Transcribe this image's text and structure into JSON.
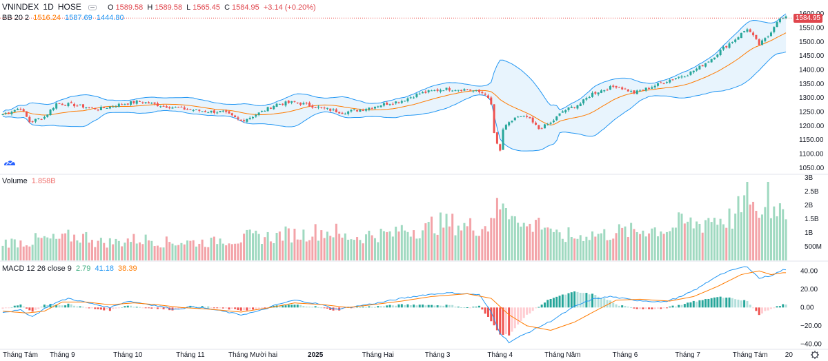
{
  "header": {
    "symbol": "VNINDEX",
    "interval": "1D",
    "exchange": "HOSE",
    "open_label": "O",
    "open": "1589.58",
    "high_label": "H",
    "high": "1589.58",
    "low_label": "L",
    "low": "1565.45",
    "close_label": "C",
    "close": "1584.95",
    "change": "+3.14 (+0.20%)"
  },
  "bb_legend": {
    "name": "BB 20 2",
    "mid": "1516.24",
    "upper": "1587.69",
    "lower": "1444.80"
  },
  "volume_legend": {
    "name": "Volume",
    "value": "1.858B"
  },
  "macd_legend": {
    "name": "MACD 12 26 close 9",
    "hist": "2.79",
    "macd": "41.18",
    "signal": "38.39"
  },
  "price_label": "1584.95",
  "colors": {
    "up": "#26a69a",
    "down": "#ef5350",
    "bb_band": "#2196f3",
    "bb_mid": "#ff7b00",
    "bb_fill": "#e8f4fd"
  },
  "chart_data": {
    "type": "candlestick",
    "title": "VNINDEX 1D HOSE",
    "price_axis": {
      "range": [
        1030,
        1615
      ],
      "ticks": [
        "1600.00",
        "1550.00",
        "1500.00",
        "1450.00",
        "1400.00",
        "1350.00",
        "1300.00",
        "1250.00",
        "1200.00",
        "1150.00",
        "1100.00",
        "1050.00"
      ]
    },
    "volume_axis": {
      "range": [
        0,
        3000
      ],
      "ticks": [
        "3B",
        "2.5B",
        "2B",
        "1.5B",
        "1B",
        "500M"
      ]
    },
    "macd_axis": {
      "range": [
        -45,
        50
      ],
      "ticks": [
        "40.00",
        "20.00",
        "0.00",
        "−20.00",
        "−40.00"
      ]
    },
    "x_axis_labels": [
      "Tháng Tám",
      "Tháng 9",
      "Tháng 10",
      "Tháng 11",
      "Tháng Mười hai",
      "2025",
      "Tháng Hai",
      "Tháng 3",
      "Tháng 4",
      "Tháng Năm",
      "Tháng 6",
      "Tháng 7",
      "Tháng Tám",
      "20"
    ],
    "x_axis_label_index": [
      0,
      20,
      42,
      63,
      84,
      105,
      126,
      146,
      167,
      188,
      209,
      230,
      251,
      264
    ],
    "price_path_anchors": [
      [
        0,
        1242
      ],
      [
        6,
        1265
      ],
      [
        9,
        1215
      ],
      [
        14,
        1232
      ],
      [
        18,
        1280
      ],
      [
        24,
        1275
      ],
      [
        32,
        1260
      ],
      [
        40,
        1278
      ],
      [
        46,
        1288
      ],
      [
        52,
        1275
      ],
      [
        60,
        1262
      ],
      [
        68,
        1252
      ],
      [
        74,
        1250
      ],
      [
        80,
        1218
      ],
      [
        84,
        1235
      ],
      [
        92,
        1278
      ],
      [
        98,
        1285
      ],
      [
        108,
        1262
      ],
      [
        114,
        1248
      ],
      [
        120,
        1258
      ],
      [
        128,
        1278
      ],
      [
        134,
        1290
      ],
      [
        140,
        1316
      ],
      [
        148,
        1332
      ],
      [
        156,
        1330
      ],
      [
        162,
        1316
      ],
      [
        164,
        1275
      ],
      [
        165,
        1175
      ],
      [
        166,
        1132
      ],
      [
        167,
        1110
      ],
      [
        168,
        1188
      ],
      [
        172,
        1230
      ],
      [
        176,
        1232
      ],
      [
        180,
        1190
      ],
      [
        184,
        1210
      ],
      [
        188,
        1252
      ],
      [
        194,
        1280
      ],
      [
        198,
        1316
      ],
      [
        202,
        1330
      ],
      [
        206,
        1343
      ],
      [
        212,
        1318
      ],
      [
        218,
        1340
      ],
      [
        224,
        1365
      ],
      [
        230,
        1385
      ],
      [
        234,
        1410
      ],
      [
        238,
        1440
      ],
      [
        242,
        1478
      ],
      [
        246,
        1510
      ],
      [
        250,
        1548
      ],
      [
        254,
        1490
      ],
      [
        257,
        1520
      ],
      [
        260,
        1575
      ],
      [
        262,
        1585
      ]
    ],
    "volume_baseline_B": [
      0.7,
      0.8,
      0.9,
      0.7,
      0.8,
      0.7,
      0.7,
      0.8,
      0.9,
      1.0,
      1.1,
      0.9,
      1.0,
      1.2,
      1.4,
      1.3,
      1.9,
      1.3,
      0.9,
      1.0,
      1.1,
      1.2,
      1.4,
      1.6,
      1.9,
      2.0
    ],
    "volume_spikes": [
      [
        167,
        1.85
      ],
      [
        169,
        1.9
      ],
      [
        172,
        1.6
      ],
      [
        180,
        1.55
      ],
      [
        190,
        1.2
      ],
      [
        246,
        1.7
      ],
      [
        250,
        2.85
      ],
      [
        253,
        1.8
      ],
      [
        257,
        2.85
      ],
      [
        260,
        1.6
      ],
      [
        262,
        1.858
      ]
    ],
    "macd_anchors": [
      [
        0,
        -5
      ],
      [
        6,
        -3
      ],
      [
        10,
        -10
      ],
      [
        16,
        3
      ],
      [
        22,
        10
      ],
      [
        30,
        4
      ],
      [
        36,
        0
      ],
      [
        42,
        7
      ],
      [
        50,
        3
      ],
      [
        58,
        -2
      ],
      [
        64,
        1
      ],
      [
        72,
        -3
      ],
      [
        80,
        -8
      ],
      [
        86,
        -4
      ],
      [
        92,
        3
      ],
      [
        98,
        8
      ],
      [
        106,
        4
      ],
      [
        112,
        -2
      ],
      [
        118,
        1
      ],
      [
        126,
        5
      ],
      [
        134,
        10
      ],
      [
        142,
        14
      ],
      [
        150,
        16
      ],
      [
        160,
        14
      ],
      [
        164,
        -5
      ],
      [
        167,
        -28
      ],
      [
        170,
        -38
      ],
      [
        176,
        -28
      ],
      [
        184,
        -15
      ],
      [
        192,
        1
      ],
      [
        198,
        9
      ],
      [
        204,
        12
      ],
      [
        212,
        8
      ],
      [
        222,
        6
      ],
      [
        228,
        12
      ],
      [
        234,
        22
      ],
      [
        240,
        35
      ],
      [
        246,
        42
      ],
      [
        250,
        45
      ],
      [
        254,
        32
      ],
      [
        258,
        35
      ],
      [
        262,
        41
      ]
    ],
    "signal_anchors": [
      [
        0,
        -4
      ],
      [
        8,
        -6
      ],
      [
        14,
        -4
      ],
      [
        20,
        6
      ],
      [
        28,
        6
      ],
      [
        36,
        3
      ],
      [
        44,
        5
      ],
      [
        52,
        3
      ],
      [
        60,
        0
      ],
      [
        70,
        -2
      ],
      [
        80,
        -5
      ],
      [
        90,
        0
      ],
      [
        98,
        5
      ],
      [
        108,
        3
      ],
      [
        116,
        0
      ],
      [
        124,
        3
      ],
      [
        134,
        7
      ],
      [
        144,
        12
      ],
      [
        156,
        15
      ],
      [
        164,
        10
      ],
      [
        170,
        -8
      ],
      [
        176,
        -20
      ],
      [
        184,
        -25
      ],
      [
        192,
        -16
      ],
      [
        200,
        -2
      ],
      [
        206,
        8
      ],
      [
        214,
        9
      ],
      [
        224,
        7
      ],
      [
        232,
        12
      ],
      [
        240,
        23
      ],
      [
        248,
        36
      ],
      [
        254,
        40
      ],
      [
        258,
        36
      ],
      [
        262,
        38
      ]
    ],
    "series": [
      {
        "name": "Price (candles)"
      },
      {
        "name": "BB upper",
        "last": 1587.69
      },
      {
        "name": "BB mid",
        "last": 1516.24
      },
      {
        "name": "BB lower",
        "last": 1444.8
      },
      {
        "name": "Volume",
        "last_B": 1.858
      },
      {
        "name": "MACD",
        "last": 41.18
      },
      {
        "name": "Signal",
        "last": 38.39
      },
      {
        "name": "Histogram",
        "last": 2.79
      }
    ]
  }
}
